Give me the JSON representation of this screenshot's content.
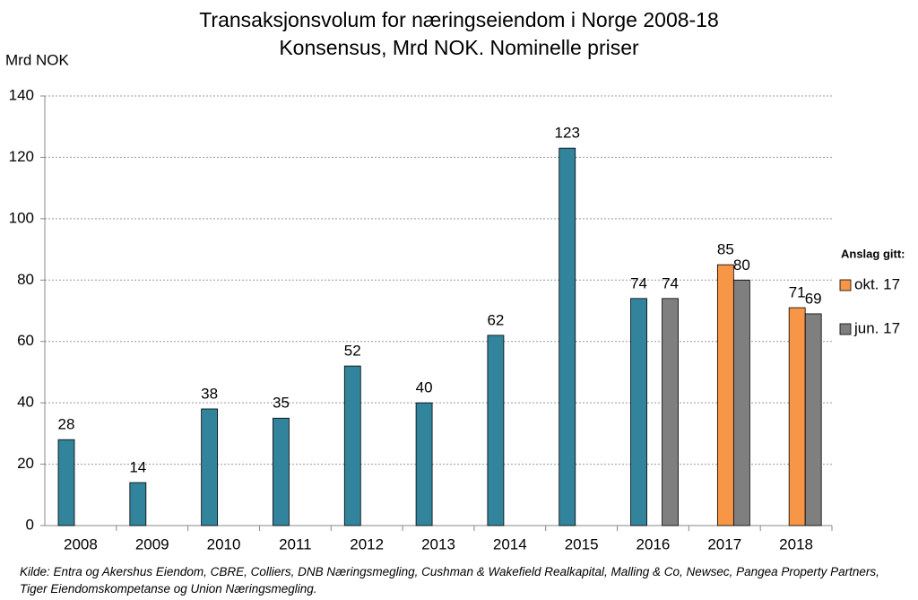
{
  "chart_data": {
    "type": "bar",
    "title": "Transaksjonsvolum for næringseiendom i Norge 2008-18",
    "subtitle": "Konsensus, Mrd NOK. Nominelle priser",
    "y_label": "Mrd NOK",
    "legend_title": "Anslag gitt:",
    "source": "Kilde: Entra og Akershus Eiendom, CBRE, Colliers, DNB Næringsmegling, Cushman & Wakefield Realkapital, Malling & Co, Newsec, Pangea Property Partners, Tiger Eiendomskompetanse og Union Næringsmegling.",
    "categories": [
      "2008",
      "2009",
      "2010",
      "2011",
      "2012",
      "2013",
      "2014",
      "2015",
      "2016",
      "2017",
      "2018"
    ],
    "series": [
      {
        "color": "#31849b",
        "values": [
          28,
          14,
          38,
          35,
          52,
          40,
          62,
          123,
          74,
          null,
          null
        ]
      },
      {
        "name": "okt. 17",
        "color": "#f79646",
        "values": [
          null,
          null,
          null,
          null,
          null,
          null,
          null,
          null,
          null,
          85,
          71
        ]
      },
      {
        "name": "jun. 17",
        "color": "#7f7f7f",
        "values": [
          null,
          null,
          null,
          null,
          null,
          null,
          null,
          null,
          74,
          80,
          69
        ]
      }
    ],
    "ylim": [
      0,
      140
    ],
    "yticks": [
      0,
      20,
      40,
      60,
      80,
      100,
      120,
      140
    ],
    "grid": true
  }
}
